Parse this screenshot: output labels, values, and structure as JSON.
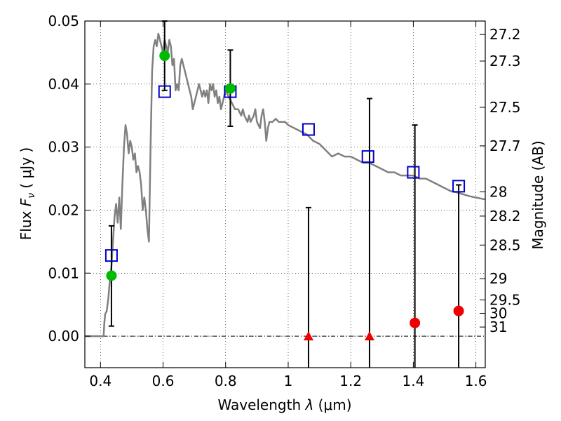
{
  "chart_data": {
    "type": "scatter",
    "xlabel": "Wavelength  λ (μm)",
    "ylabel": "Flux  F_ν  ( μJy )",
    "ylabel_parts": {
      "prefix": "Flux  ",
      "symbol": "F",
      "subscript": "ν",
      "paren_open": "  ( ",
      "unit": "μJy",
      "paren_close": " )"
    },
    "xlabel_parts": {
      "prefix": "Wavelength  ",
      "symbol": "λ",
      "unit": " (μm)"
    },
    "y2label": "Magnitude (AB)",
    "xlim": [
      0.35,
      1.63
    ],
    "ylim": [
      -0.005,
      0.05
    ],
    "grid": true,
    "x_ticks": [
      {
        "value": 0.4,
        "label": "0.4"
      },
      {
        "value": 0.6,
        "label": "0.6"
      },
      {
        "value": 0.8,
        "label": "0.8"
      },
      {
        "value": 1.0,
        "label": "1"
      },
      {
        "value": 1.2,
        "label": "1.2"
      },
      {
        "value": 1.4,
        "label": "1.4"
      },
      {
        "value": 1.6,
        "label": "1.6"
      }
    ],
    "y_ticks": [
      {
        "value": 0.0,
        "label": "0.00"
      },
      {
        "value": 0.01,
        "label": "0.01"
      },
      {
        "value": 0.02,
        "label": "0.02"
      },
      {
        "value": 0.03,
        "label": "0.03"
      },
      {
        "value": 0.04,
        "label": "0.04"
      },
      {
        "value": 0.05,
        "label": "0.05"
      }
    ],
    "magnitude_ticks": [
      {
        "value": 27.2,
        "label": "27.2"
      },
      {
        "value": 27.3,
        "label": "27.3"
      },
      {
        "value": 27.5,
        "label": "27.5"
      },
      {
        "value": 27.7,
        "label": "27.7"
      },
      {
        "value": 28.0,
        "label": "28"
      },
      {
        "value": 28.2,
        "label": "28.2"
      },
      {
        "value": 28.5,
        "label": "28.5"
      },
      {
        "value": 29.0,
        "label": "29"
      },
      {
        "value": 29.5,
        "label": "29.5"
      },
      {
        "value": 30.0,
        "label": "30"
      },
      {
        "value": 31.0,
        "label": "31"
      }
    ],
    "colors": {
      "model": "#808080",
      "model_flux": "#0000cc",
      "detection": "#00bb00",
      "non_detection": "#ee0000",
      "error_bar": "#000000"
    },
    "model_spectrum": {
      "name": "",
      "points": [
        [
          0.35,
          0.0
        ],
        [
          0.4,
          0.0
        ],
        [
          0.41,
          0.0
        ],
        [
          0.412,
          0.002
        ],
        [
          0.415,
          0.0035
        ],
        [
          0.42,
          0.004
        ],
        [
          0.425,
          0.006
        ],
        [
          0.43,
          0.009
        ],
        [
          0.435,
          0.011
        ],
        [
          0.44,
          0.015
        ],
        [
          0.445,
          0.019
        ],
        [
          0.45,
          0.021
        ],
        [
          0.455,
          0.018
        ],
        [
          0.46,
          0.022
        ],
        [
          0.465,
          0.017
        ],
        [
          0.47,
          0.024
        ],
        [
          0.475,
          0.03
        ],
        [
          0.48,
          0.0335
        ],
        [
          0.485,
          0.032
        ],
        [
          0.49,
          0.029
        ],
        [
          0.495,
          0.031
        ],
        [
          0.5,
          0.03
        ],
        [
          0.505,
          0.028
        ],
        [
          0.51,
          0.029
        ],
        [
          0.515,
          0.026
        ],
        [
          0.52,
          0.027
        ],
        [
          0.525,
          0.026
        ],
        [
          0.53,
          0.024
        ],
        [
          0.535,
          0.02
        ],
        [
          0.54,
          0.022
        ],
        [
          0.545,
          0.02
        ],
        [
          0.55,
          0.017
        ],
        [
          0.555,
          0.015
        ],
        [
          0.56,
          0.03
        ],
        [
          0.565,
          0.042
        ],
        [
          0.57,
          0.046
        ],
        [
          0.575,
          0.047
        ],
        [
          0.58,
          0.046
        ],
        [
          0.585,
          0.048
        ],
        [
          0.59,
          0.047
        ],
        [
          0.595,
          0.046
        ],
        [
          0.6,
          0.045
        ],
        [
          0.605,
          0.047
        ],
        [
          0.61,
          0.046
        ],
        [
          0.615,
          0.045
        ],
        [
          0.62,
          0.047
        ],
        [
          0.625,
          0.046
        ],
        [
          0.63,
          0.043
        ],
        [
          0.635,
          0.044
        ],
        [
          0.64,
          0.039
        ],
        [
          0.645,
          0.04
        ],
        [
          0.65,
          0.039
        ],
        [
          0.655,
          0.043
        ],
        [
          0.66,
          0.044
        ],
        [
          0.665,
          0.043
        ],
        [
          0.67,
          0.042
        ],
        [
          0.675,
          0.041
        ],
        [
          0.68,
          0.04
        ],
        [
          0.685,
          0.039
        ],
        [
          0.69,
          0.038
        ],
        [
          0.695,
          0.036
        ],
        [
          0.7,
          0.037
        ],
        [
          0.705,
          0.038
        ],
        [
          0.71,
          0.039
        ],
        [
          0.715,
          0.04
        ],
        [
          0.72,
          0.039
        ],
        [
          0.725,
          0.038
        ],
        [
          0.73,
          0.039
        ],
        [
          0.735,
          0.038
        ],
        [
          0.74,
          0.039
        ],
        [
          0.745,
          0.037
        ],
        [
          0.75,
          0.04
        ],
        [
          0.755,
          0.039
        ],
        [
          0.76,
          0.04
        ],
        [
          0.765,
          0.038
        ],
        [
          0.77,
          0.039
        ],
        [
          0.775,
          0.037
        ],
        [
          0.78,
          0.038
        ],
        [
          0.785,
          0.036
        ],
        [
          0.79,
          0.037
        ],
        [
          0.795,
          0.038
        ],
        [
          0.8,
          0.039
        ],
        [
          0.81,
          0.038
        ],
        [
          0.82,
          0.037
        ],
        [
          0.83,
          0.036
        ],
        [
          0.84,
          0.036
        ],
        [
          0.85,
          0.035
        ],
        [
          0.855,
          0.036
        ],
        [
          0.86,
          0.035
        ],
        [
          0.87,
          0.034
        ],
        [
          0.875,
          0.035
        ],
        [
          0.88,
          0.034
        ],
        [
          0.89,
          0.035
        ],
        [
          0.895,
          0.036
        ],
        [
          0.9,
          0.034
        ],
        [
          0.91,
          0.033
        ],
        [
          0.915,
          0.035
        ],
        [
          0.92,
          0.036
        ],
        [
          0.925,
          0.034
        ],
        [
          0.93,
          0.031
        ],
        [
          0.935,
          0.033
        ],
        [
          0.94,
          0.034
        ],
        [
          0.95,
          0.034
        ],
        [
          0.96,
          0.0345
        ],
        [
          0.97,
          0.034
        ],
        [
          0.98,
          0.034
        ],
        [
          0.99,
          0.034
        ],
        [
          1.0,
          0.0335
        ],
        [
          1.02,
          0.033
        ],
        [
          1.04,
          0.0325
        ],
        [
          1.06,
          0.032
        ],
        [
          1.08,
          0.031
        ],
        [
          1.1,
          0.0305
        ],
        [
          1.12,
          0.0295
        ],
        [
          1.14,
          0.0285
        ],
        [
          1.16,
          0.029
        ],
        [
          1.18,
          0.0285
        ],
        [
          1.2,
          0.0285
        ],
        [
          1.22,
          0.028
        ],
        [
          1.24,
          0.0275
        ],
        [
          1.26,
          0.0275
        ],
        [
          1.28,
          0.027
        ],
        [
          1.3,
          0.0265
        ],
        [
          1.32,
          0.026
        ],
        [
          1.34,
          0.026
        ],
        [
          1.36,
          0.0255
        ],
        [
          1.38,
          0.0255
        ],
        [
          1.4,
          0.0255
        ],
        [
          1.42,
          0.025
        ],
        [
          1.44,
          0.025
        ],
        [
          1.46,
          0.0245
        ],
        [
          1.48,
          0.024
        ],
        [
          1.5,
          0.0235
        ],
        [
          1.52,
          0.023
        ],
        [
          1.54,
          0.0228
        ],
        [
          1.56,
          0.0225
        ],
        [
          1.58,
          0.0222
        ],
        [
          1.6,
          0.022
        ],
        [
          1.63,
          0.0217
        ]
      ]
    },
    "model_flux_points": [
      {
        "x": 0.435,
        "y": 0.0128
      },
      {
        "x": 0.605,
        "y": 0.0388
      },
      {
        "x": 0.815,
        "y": 0.0388
      },
      {
        "x": 1.065,
        "y": 0.0328
      },
      {
        "x": 1.255,
        "y": 0.0285
      },
      {
        "x": 1.4,
        "y": 0.026
      },
      {
        "x": 1.545,
        "y": 0.0238
      }
    ],
    "detections": [
      {
        "x": 0.435,
        "y": 0.0096,
        "yerr_low": 0.0016,
        "yerr_high": 0.0175
      },
      {
        "x": 0.605,
        "y": 0.0445,
        "yerr_low": 0.039,
        "yerr_high": 0.05
      },
      {
        "x": 0.815,
        "y": 0.0393,
        "yerr_low": 0.0333,
        "yerr_high": 0.0454
      }
    ],
    "non_detections": [
      {
        "x": 1.065,
        "y": 0.0,
        "marker": "triangle",
        "yerr_low": -0.005,
        "yerr_high": 0.0204
      },
      {
        "x": 1.26,
        "y": 0.0,
        "marker": "triangle",
        "yerr_low": -0.005,
        "yerr_high": 0.0377
      },
      {
        "x": 1.405,
        "y": 0.0021,
        "marker": "circle",
        "yerr_low": -0.005,
        "yerr_high": 0.0335
      },
      {
        "x": 1.545,
        "y": 0.004,
        "marker": "circle",
        "yerr_low": -0.005,
        "yerr_high": 0.024
      }
    ]
  }
}
